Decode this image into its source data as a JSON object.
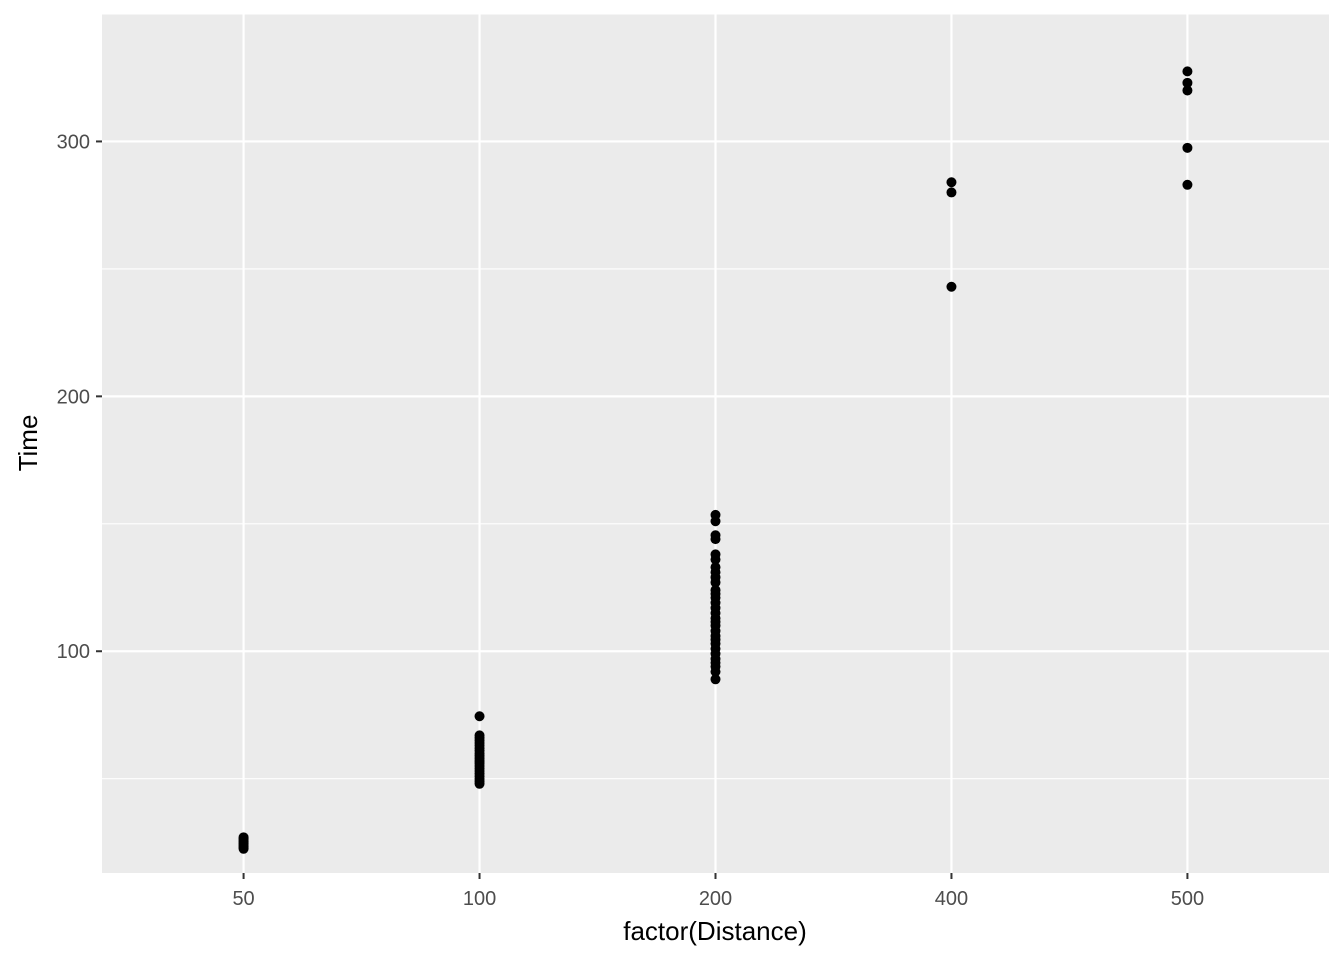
{
  "chart_data": {
    "type": "scatter",
    "title": "",
    "xlabel": "factor(Distance)",
    "ylabel": "Time",
    "x_scale": "categorical",
    "categories": [
      "50",
      "100",
      "200",
      "400",
      "500"
    ],
    "ylim": [
      13,
      350
    ],
    "yticks": [
      100,
      200,
      300
    ],
    "grid": true,
    "legend": "none",
    "colors": {
      "panel_background": "#ebebeb",
      "grid_major": "#ffffff",
      "point": "#000000",
      "tick_label": "#4d4d4d",
      "axis_title": "#000000"
    },
    "series": [
      {
        "points": [
          {
            "x": "50",
            "y": 22.5
          },
          {
            "x": "50",
            "y": 23.0
          },
          {
            "x": "50",
            "y": 23.5
          },
          {
            "x": "50",
            "y": 24.0
          },
          {
            "x": "50",
            "y": 24.5
          },
          {
            "x": "50",
            "y": 25.0
          },
          {
            "x": "50",
            "y": 25.5
          },
          {
            "x": "50",
            "y": 26.0
          },
          {
            "x": "50",
            "y": 26.5
          },
          {
            "x": "50",
            "y": 27.0
          },
          {
            "x": "100",
            "y": 48
          },
          {
            "x": "100",
            "y": 49
          },
          {
            "x": "100",
            "y": 50
          },
          {
            "x": "100",
            "y": 51
          },
          {
            "x": "100",
            "y": 52
          },
          {
            "x": "100",
            "y": 53
          },
          {
            "x": "100",
            "y": 54
          },
          {
            "x": "100",
            "y": 55
          },
          {
            "x": "100",
            "y": 56
          },
          {
            "x": "100",
            "y": 57
          },
          {
            "x": "100",
            "y": 58
          },
          {
            "x": "100",
            "y": 59
          },
          {
            "x": "100",
            "y": 60
          },
          {
            "x": "100",
            "y": 61
          },
          {
            "x": "100",
            "y": 62
          },
          {
            "x": "100",
            "y": 63
          },
          {
            "x": "100",
            "y": 64
          },
          {
            "x": "100",
            "y": 65
          },
          {
            "x": "100",
            "y": 66
          },
          {
            "x": "100",
            "y": 67
          },
          {
            "x": "100",
            "y": 74.5
          },
          {
            "x": "200",
            "y": 89
          },
          {
            "x": "200",
            "y": 92
          },
          {
            "x": "200",
            "y": 94
          },
          {
            "x": "200",
            "y": 95.5
          },
          {
            "x": "200",
            "y": 97
          },
          {
            "x": "200",
            "y": 99
          },
          {
            "x": "200",
            "y": 101
          },
          {
            "x": "200",
            "y": 103
          },
          {
            "x": "200",
            "y": 104.5
          },
          {
            "x": "200",
            "y": 106
          },
          {
            "x": "200",
            "y": 108
          },
          {
            "x": "200",
            "y": 110
          },
          {
            "x": "200",
            "y": 111.5
          },
          {
            "x": "200",
            "y": 113
          },
          {
            "x": "200",
            "y": 115
          },
          {
            "x": "200",
            "y": 117
          },
          {
            "x": "200",
            "y": 119
          },
          {
            "x": "200",
            "y": 121
          },
          {
            "x": "200",
            "y": 122.5
          },
          {
            "x": "200",
            "y": 124
          },
          {
            "x": "200",
            "y": 127
          },
          {
            "x": "200",
            "y": 129
          },
          {
            "x": "200",
            "y": 131
          },
          {
            "x": "200",
            "y": 133
          },
          {
            "x": "200",
            "y": 136
          },
          {
            "x": "200",
            "y": 138
          },
          {
            "x": "200",
            "y": 144
          },
          {
            "x": "200",
            "y": 145.5
          },
          {
            "x": "200",
            "y": 151
          },
          {
            "x": "200",
            "y": 153.5
          },
          {
            "x": "400",
            "y": 243
          },
          {
            "x": "400",
            "y": 280
          },
          {
            "x": "400",
            "y": 284
          },
          {
            "x": "500",
            "y": 283
          },
          {
            "x": "500",
            "y": 297.5
          },
          {
            "x": "500",
            "y": 320
          },
          {
            "x": "500",
            "y": 323
          },
          {
            "x": "500",
            "y": 327.5
          }
        ]
      }
    ]
  }
}
